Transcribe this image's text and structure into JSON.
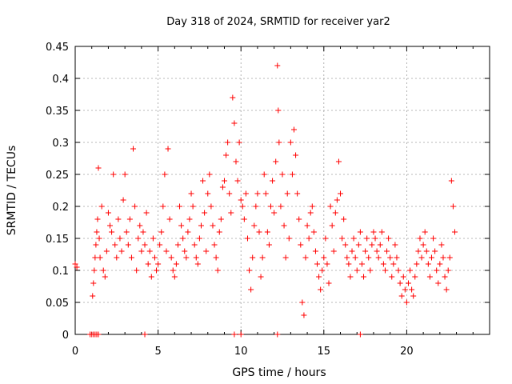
{
  "chart_data": {
    "type": "scatter",
    "title": "Day 318 of 2024, SRMTID for receiver yar2",
    "xlabel": "GPS time / hours",
    "ylabel": "SRMTID / TECUs",
    "xlim": [
      0,
      25
    ],
    "ylim": [
      0,
      0.45
    ],
    "xticks": [
      0,
      5,
      10,
      15,
      20
    ],
    "xtick_labels": [
      "0",
      "5",
      "10",
      "15",
      "20"
    ],
    "yticks": [
      0,
      0.05,
      0.1,
      0.15,
      0.2,
      0.25,
      0.3,
      0.35,
      0.4,
      0.45
    ],
    "ytick_labels": [
      "0",
      "0.05",
      "0.1",
      "0.15",
      "0.2",
      "0.25",
      "0.3",
      "0.35",
      "0.4",
      "0.45"
    ],
    "grid": true,
    "marker": "+",
    "marker_color": "#ff0000",
    "series": [
      {
        "name": "SRMTID",
        "x": [
          0.0,
          0.1,
          0.9,
          1.0,
          1.1,
          1.2,
          1.3,
          1.4,
          4.2,
          9.6,
          10.0,
          12.2,
          17.2,
          1.05,
          1.1,
          1.15,
          1.2,
          1.25,
          1.3,
          1.35,
          1.4,
          1.45,
          1.5,
          1.6,
          1.7,
          1.8,
          1.9,
          2.0,
          2.1,
          2.2,
          2.3,
          2.4,
          2.5,
          2.6,
          2.7,
          2.8,
          2.9,
          3.0,
          3.1,
          3.2,
          3.3,
          3.4,
          3.5,
          3.6,
          3.7,
          3.8,
          3.9,
          4.0,
          4.1,
          4.2,
          4.3,
          4.4,
          4.5,
          4.6,
          4.7,
          4.8,
          4.9,
          5.0,
          5.1,
          5.2,
          5.3,
          5.4,
          5.5,
          5.6,
          5.7,
          5.8,
          5.9,
          6.0,
          6.1,
          6.2,
          6.3,
          6.4,
          6.5,
          6.6,
          6.7,
          6.8,
          6.9,
          7.0,
          7.1,
          7.2,
          7.3,
          7.4,
          7.5,
          7.6,
          7.7,
          7.8,
          7.9,
          8.0,
          8.1,
          8.2,
          8.3,
          8.4,
          8.5,
          8.6,
          8.7,
          8.8,
          8.9,
          9.0,
          9.1,
          9.2,
          9.3,
          9.4,
          9.5,
          9.6,
          9.7,
          9.8,
          9.9,
          10.0,
          10.1,
          10.2,
          10.3,
          10.4,
          10.5,
          10.6,
          10.7,
          10.8,
          10.9,
          11.0,
          11.1,
          11.2,
          11.3,
          11.4,
          11.5,
          11.6,
          11.7,
          11.8,
          11.9,
          12.0,
          12.1,
          12.2,
          12.25,
          12.3,
          12.4,
          12.5,
          12.6,
          12.7,
          12.8,
          12.9,
          13.0,
          13.1,
          13.2,
          13.3,
          13.4,
          13.5,
          13.6,
          13.7,
          13.8,
          13.9,
          14.0,
          14.1,
          14.2,
          14.3,
          14.4,
          14.5,
          14.6,
          14.7,
          14.8,
          14.9,
          15.0,
          15.1,
          15.2,
          15.3,
          15.4,
          15.5,
          15.6,
          15.7,
          15.8,
          15.9,
          16.0,
          16.1,
          16.2,
          16.3,
          16.4,
          16.5,
          16.6,
          16.7,
          16.8,
          16.9,
          17.0,
          17.1,
          17.2,
          17.3,
          17.4,
          17.5,
          17.6,
          17.7,
          17.8,
          17.9,
          18.0,
          18.1,
          18.2,
          18.3,
          18.4,
          18.5,
          18.6,
          18.7,
          18.8,
          18.9,
          19.0,
          19.1,
          19.2,
          19.3,
          19.4,
          19.5,
          19.6,
          19.7,
          19.8,
          19.9,
          20.0,
          20.1,
          20.2,
          20.3,
          20.4,
          20.5,
          20.6,
          20.7,
          20.8,
          20.9,
          21.0,
          21.1,
          21.2,
          21.3,
          21.4,
          21.5,
          21.6,
          21.7,
          21.8,
          21.9,
          22.0,
          22.1,
          22.2,
          22.3,
          22.4,
          22.5,
          22.6,
          22.7,
          22.8,
          22.9
        ],
        "y": [
          0.11,
          0.105,
          0.0,
          0.0,
          0.0,
          0.0,
          0.0,
          0.0,
          0.0,
          0.0,
          0.0,
          0.0,
          0.0,
          0.06,
          0.08,
          0.1,
          0.12,
          0.14,
          0.16,
          0.18,
          0.26,
          0.15,
          0.12,
          0.2,
          0.1,
          0.09,
          0.13,
          0.19,
          0.17,
          0.16,
          0.25,
          0.14,
          0.12,
          0.18,
          0.15,
          0.13,
          0.21,
          0.25,
          0.16,
          0.14,
          0.18,
          0.12,
          0.29,
          0.2,
          0.1,
          0.15,
          0.17,
          0.13,
          0.16,
          0.14,
          0.19,
          0.11,
          0.13,
          0.09,
          0.15,
          0.12,
          0.1,
          0.11,
          0.14,
          0.16,
          0.2,
          0.25,
          0.13,
          0.29,
          0.18,
          0.12,
          0.1,
          0.09,
          0.11,
          0.14,
          0.2,
          0.17,
          0.15,
          0.13,
          0.12,
          0.16,
          0.18,
          0.22,
          0.2,
          0.14,
          0.12,
          0.11,
          0.15,
          0.17,
          0.24,
          0.19,
          0.13,
          0.22,
          0.25,
          0.2,
          0.17,
          0.14,
          0.12,
          0.1,
          0.16,
          0.18,
          0.23,
          0.24,
          0.28,
          0.3,
          0.22,
          0.19,
          0.37,
          0.33,
          0.27,
          0.24,
          0.3,
          0.21,
          0.2,
          0.18,
          0.22,
          0.15,
          0.1,
          0.07,
          0.12,
          0.17,
          0.2,
          0.22,
          0.16,
          0.09,
          0.12,
          0.25,
          0.22,
          0.16,
          0.14,
          0.2,
          0.24,
          0.19,
          0.27,
          0.42,
          0.35,
          0.3,
          0.2,
          0.25,
          0.17,
          0.12,
          0.22,
          0.15,
          0.3,
          0.25,
          0.32,
          0.28,
          0.22,
          0.18,
          0.14,
          0.05,
          0.03,
          0.12,
          0.17,
          0.15,
          0.19,
          0.2,
          0.16,
          0.13,
          0.11,
          0.09,
          0.07,
          0.1,
          0.12,
          0.15,
          0.11,
          0.08,
          0.2,
          0.17,
          0.13,
          0.19,
          0.21,
          0.27,
          0.22,
          0.15,
          0.18,
          0.14,
          0.12,
          0.11,
          0.09,
          0.13,
          0.15,
          0.12,
          0.1,
          0.14,
          0.16,
          0.11,
          0.09,
          0.13,
          0.15,
          0.12,
          0.1,
          0.14,
          0.16,
          0.15,
          0.13,
          0.12,
          0.14,
          0.16,
          0.11,
          0.1,
          0.13,
          0.15,
          0.12,
          0.09,
          0.11,
          0.14,
          0.12,
          0.1,
          0.08,
          0.06,
          0.09,
          0.07,
          0.05,
          0.08,
          0.1,
          0.07,
          0.06,
          0.09,
          0.11,
          0.13,
          0.15,
          0.12,
          0.14,
          0.16,
          0.13,
          0.11,
          0.09,
          0.12,
          0.15,
          0.13,
          0.1,
          0.08,
          0.11,
          0.14,
          0.12,
          0.09,
          0.07,
          0.1,
          0.12,
          0.24,
          0.2,
          0.16
        ]
      }
    ]
  }
}
